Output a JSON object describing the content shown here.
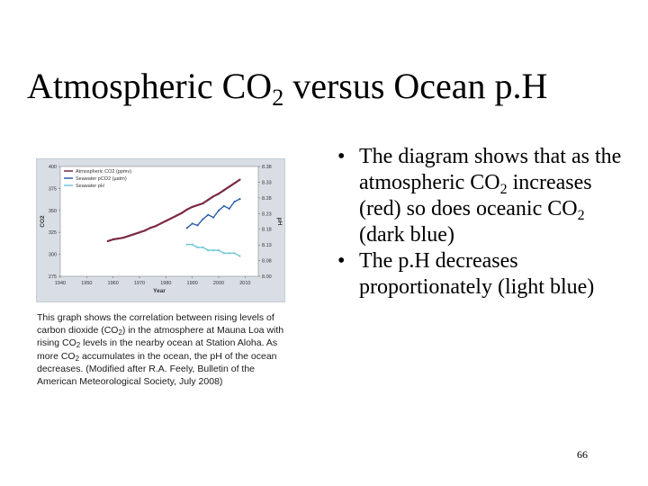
{
  "slide": {
    "title": {
      "prefix": "Atmospheric CO",
      "sub": "2",
      "suffix": " versus Ocean p.H"
    },
    "bullets": [
      {
        "pre": "The diagram shows that as the atmospheric CO",
        "sub1": "2",
        "mid": " increases (red) so does oceanic CO",
        "sub2": "2",
        "post": " (dark blue)"
      },
      {
        "text": "The p.H decreases proportionately (light blue)"
      }
    ],
    "bullet_char": "•",
    "caption": {
      "part1": "This graph shows the correlation between rising levels of carbon dioxide (CO",
      "sub1": "2",
      "part2": ") in the atmosphere at Mauna Loa with rising CO",
      "sub2": "2",
      "part3": " levels in the nearby ocean at Station Aloha. As more CO",
      "sub3": "2",
      "part4": " accumulates in the ocean, the pH of the ocean decreases. (Modified after R.A. Feely, Bulletin of the American Meteorological Society, July 2008)"
    },
    "page_number": "66"
  },
  "colors": {
    "atmospheric": "#7a2a45",
    "seawater_pco2": "#2f5fa8",
    "seawater_ph": "#6fc6d6",
    "frame": "#d9dee5"
  },
  "chart_data": {
    "type": "line",
    "xlabel": "Year",
    "ylabel_left": "CO2",
    "ylabel_right": "pH",
    "xlim": [
      1940,
      2015
    ],
    "ylim_left": [
      275,
      400
    ],
    "ylim_right": [
      8.0,
      8.38
    ],
    "x_ticks": [
      "1940",
      "1950",
      "1960",
      "1970",
      "1980",
      "1990",
      "2000",
      "2010"
    ],
    "y_left_ticks": [
      "275",
      "300",
      "325",
      "350",
      "375",
      "400"
    ],
    "y_right_ticks": [
      "8.00",
      "8.08",
      "8.13",
      "8.18",
      "8.23",
      "8.28",
      "8.33",
      "8.38"
    ],
    "legend_position": "top-left",
    "series": [
      {
        "name": "Atmospheric CO2 (ppmv)",
        "axis": "left",
        "x": [
          1958,
          1960,
          1962,
          1964,
          1966,
          1968,
          1970,
          1972,
          1974,
          1976,
          1978,
          1980,
          1982,
          1984,
          1986,
          1988,
          1990,
          1992,
          1994,
          1996,
          1998,
          2000,
          2002,
          2004,
          2006,
          2008
        ],
        "y": [
          315,
          317,
          318,
          319,
          321,
          323,
          325,
          327,
          330,
          332,
          335,
          338,
          341,
          344,
          347,
          351,
          354,
          356,
          358,
          362,
          366,
          369,
          373,
          377,
          381,
          385
        ]
      },
      {
        "name": "Seawater pCO2 (µatm)",
        "axis": "left",
        "x": [
          1988,
          1990,
          1992,
          1994,
          1996,
          1998,
          2000,
          2002,
          2004,
          2006,
          2008
        ],
        "y": [
          330,
          335,
          333,
          340,
          345,
          342,
          350,
          355,
          352,
          360,
          363
        ]
      },
      {
        "name": "Seawater pH",
        "axis": "right",
        "x": [
          1988,
          1990,
          1992,
          1994,
          1996,
          1998,
          2000,
          2002,
          2004,
          2006,
          2008
        ],
        "y": [
          8.11,
          8.11,
          8.1,
          8.1,
          8.09,
          8.09,
          8.09,
          8.08,
          8.08,
          8.08,
          8.07
        ]
      }
    ]
  }
}
